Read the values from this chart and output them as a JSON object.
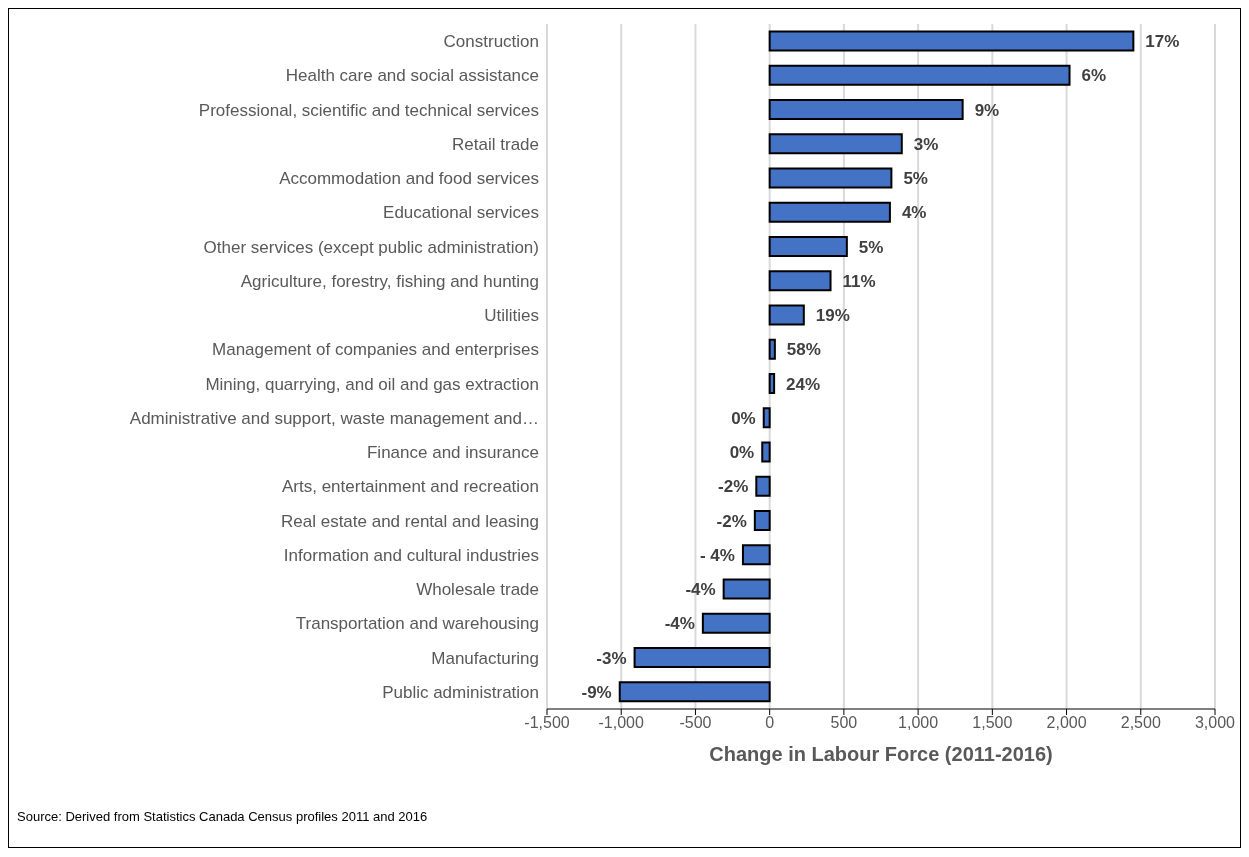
{
  "chart_data": {
    "type": "bar",
    "orientation": "horizontal",
    "xlabel": "Change in Labour Force (2011-2016)",
    "categories": [
      "Construction",
      "Health care and social assistance",
      "Professional, scientific and technical services",
      "Retail trade",
      "Accommodation and food services",
      "Educational services",
      "Other services (except public administration)",
      "Agriculture, forestry, fishing and hunting",
      "Utilities",
      "Management of companies and enterprises",
      "Mining, quarrying, and oil and gas extraction",
      "Administrative and support, waste management and…",
      "Finance and insurance",
      "Arts, entertainment and recreation",
      "Real estate and rental and leasing",
      "Information and cultural industries",
      "Wholesale trade",
      "Transportation and warehousing",
      "Manufacturing",
      "Public administration"
    ],
    "values": [
      2450,
      2020,
      1300,
      890,
      820,
      810,
      520,
      410,
      230,
      35,
      30,
      -40,
      -50,
      -90,
      -100,
      -180,
      -310,
      -450,
      -910,
      -1010
    ],
    "color": "#4472c4",
    "xlim": [
      -1500,
      3000
    ],
    "xticks": [
      {
        "value": -1500,
        "label": "-1,500"
      },
      {
        "value": -1000,
        "label": "-1,000"
      },
      -500,
      0,
      500,
      {
        "value": 1000,
        "label": "1,000"
      },
      {
        "value": 1500,
        "label": "1,500"
      },
      {
        "value": 2000,
        "label": "2,000"
      },
      {
        "value": 2500,
        "label": "2,500"
      },
      {
        "value": 3000,
        "label": "3,000"
      }
    ],
    "grid": "x",
    "annotations": [
      {
        "text": "17%",
        "x": 2450,
        "y": "Construction"
      },
      {
        "text": "6%",
        "x": 2020,
        "y": "Health care and social assistance"
      },
      {
        "text": "9%",
        "x": 1300,
        "y": "Professional, scientific and technical services"
      },
      {
        "text": "3%",
        "x": 890,
        "y": "Retail trade"
      },
      {
        "text": "5%",
        "x": 820,
        "y": "Accommodation and food services"
      },
      {
        "text": "4%",
        "x": 810,
        "y": "Educational services"
      },
      {
        "text": "5%",
        "x": 520,
        "y": "Other services (except public administration)"
      },
      {
        "text": "11%",
        "x": 410,
        "y": "Agriculture, forestry, fishing and hunting"
      },
      {
        "text": "19%",
        "x": 230,
        "y": "Utilities"
      },
      {
        "text": "58%",
        "x": 35,
        "y": "Management of companies and enterprises"
      },
      {
        "text": "24%",
        "x": 30,
        "y": "Mining, quarrying, and oil and gas extraction"
      },
      {
        "text": "0%",
        "x": -40,
        "y": "Administrative and support, waste management and…"
      },
      {
        "text": "0%",
        "x": -50,
        "y": "Finance and insurance"
      },
      {
        "text": "-2%",
        "x": -90,
        "y": "Arts, entertainment and recreation"
      },
      {
        "text": "-2%",
        "x": -100,
        "y": "Real estate and rental and leasing"
      },
      {
        "text": "- 4%",
        "x": -180,
        "y": "Information and cultural industries"
      },
      {
        "text": "-4%",
        "x": -310,
        "y": "Wholesale trade"
      },
      {
        "text": "-4%",
        "x": -450,
        "y": "Transportation and warehousing"
      },
      {
        "text": "-3%",
        "x": -910,
        "y": "Manufacturing"
      },
      {
        "text": "-9%",
        "x": -1010,
        "y": "Public administration"
      },
      "Source: Derived from Statistics Canada Census profiles 2011 and 2016"
    ]
  }
}
